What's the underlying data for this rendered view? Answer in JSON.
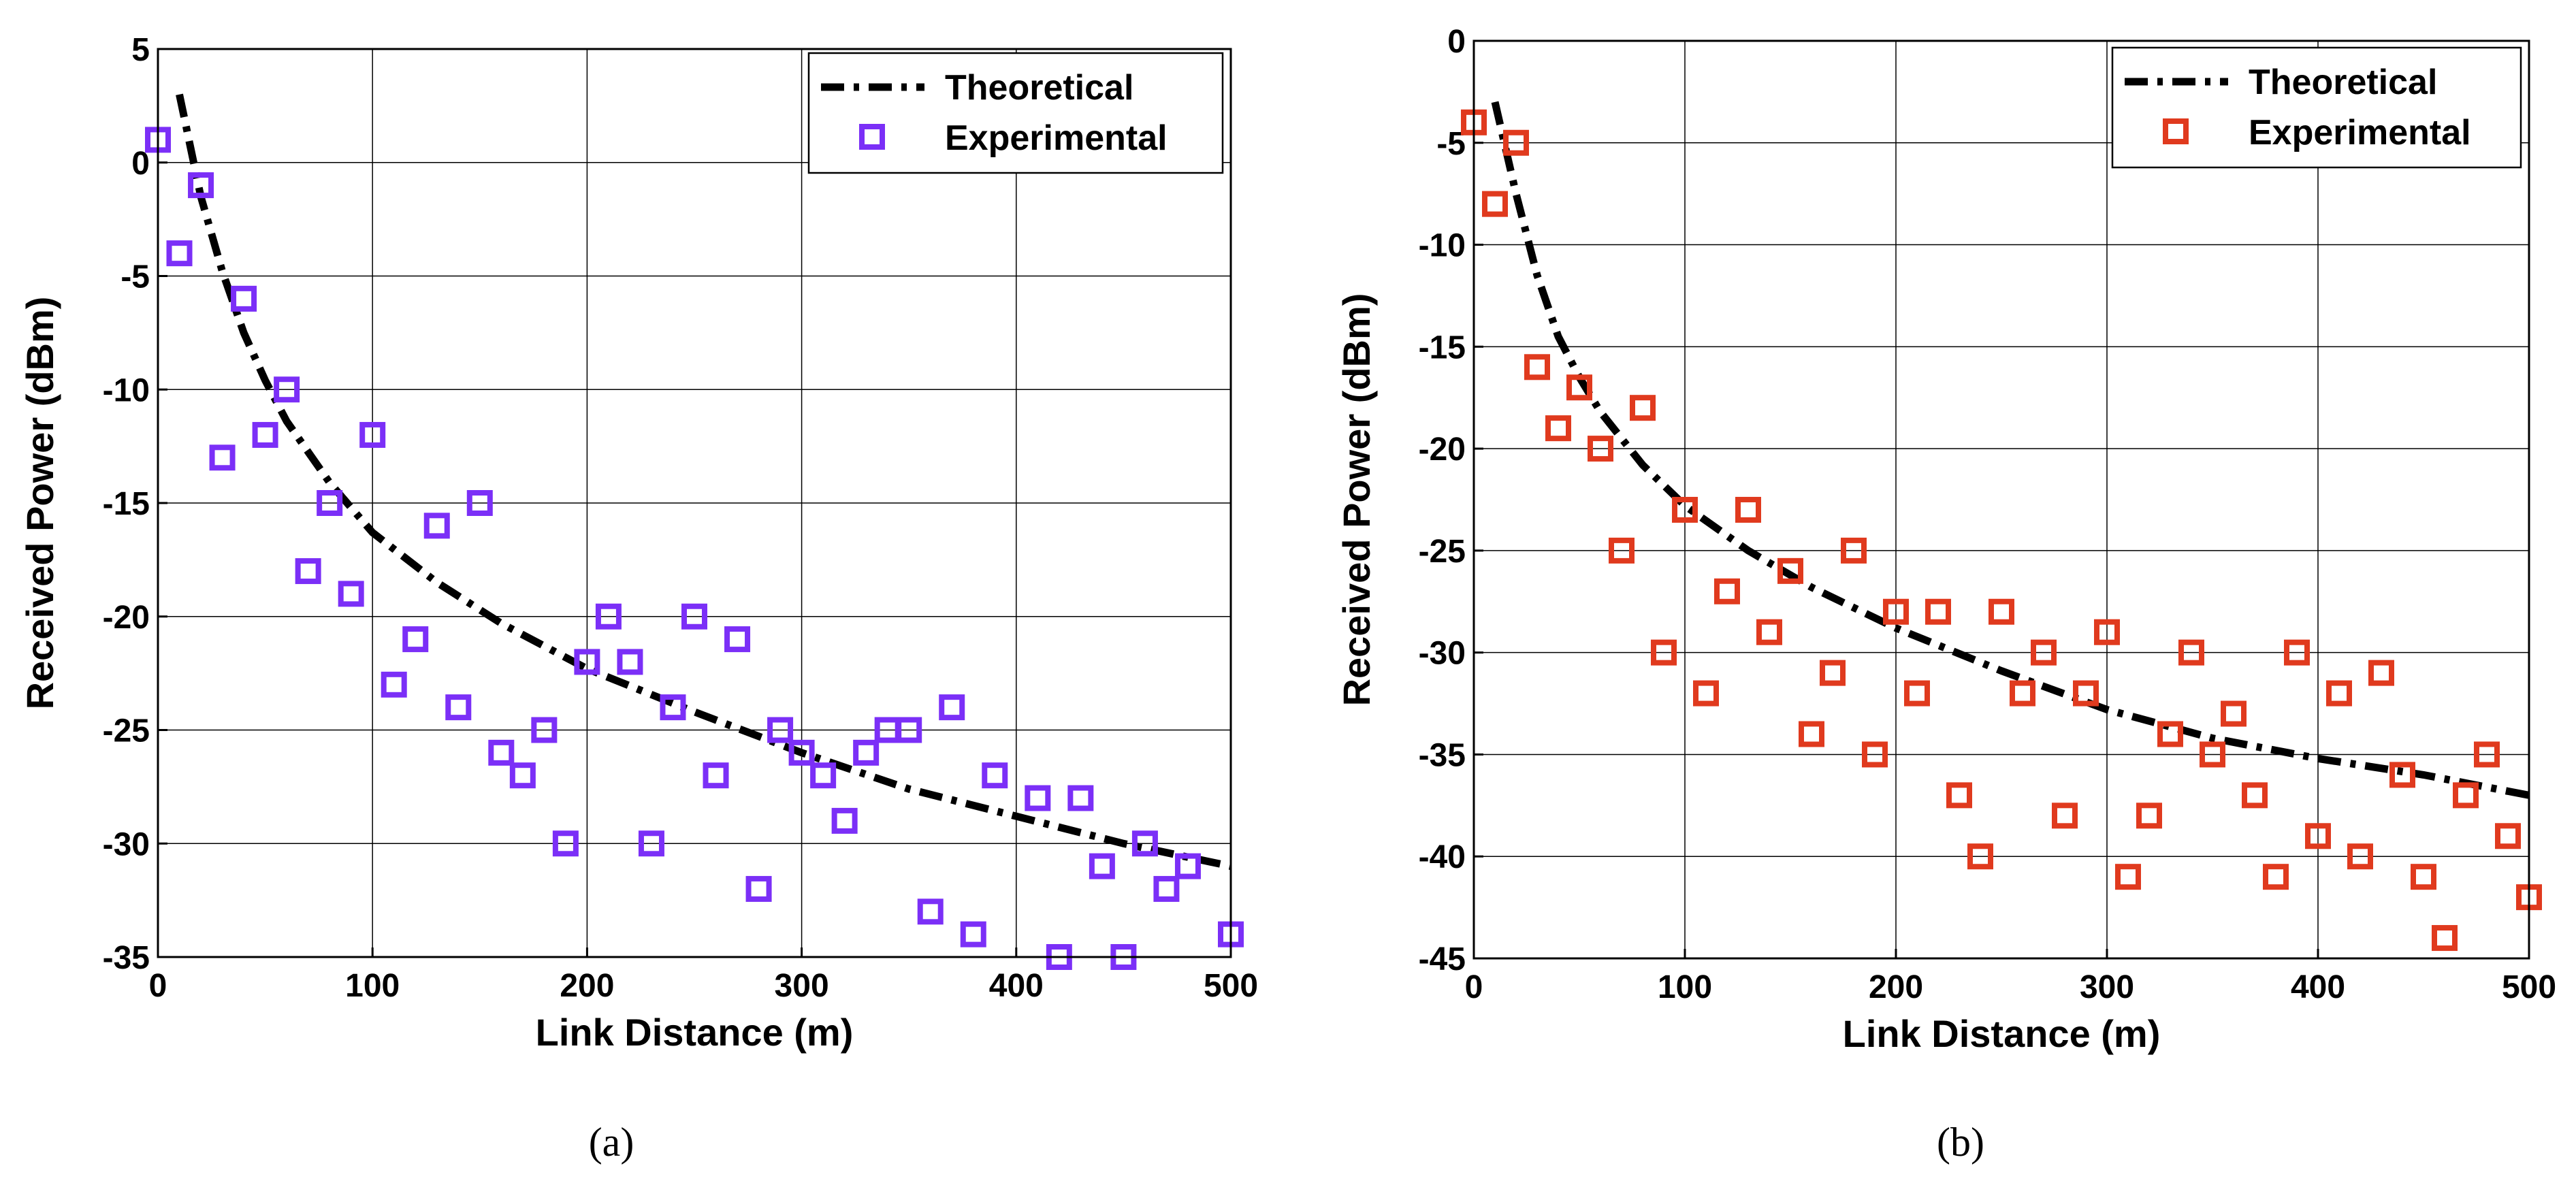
{
  "chart_data": [
    {
      "type": "scatter",
      "caption": "(a)",
      "xlabel": "Link Distance (m)",
      "ylabel": "Received Power (dBm)",
      "xlim": [
        0,
        500
      ],
      "ylim": [
        -35,
        5
      ],
      "xticks": [
        0,
        100,
        200,
        300,
        400,
        500
      ],
      "yticks": [
        5,
        0,
        -5,
        -10,
        -15,
        -20,
        -25,
        -30,
        -35
      ],
      "grid": true,
      "legend_position": "top-right",
      "marker_color": "#7b2ff7",
      "series": [
        {
          "name": "Theoretical",
          "kind": "line",
          "style": "dash-dot",
          "x": [
            10,
            20,
            30,
            40,
            50,
            60,
            80,
            100,
            130,
            160,
            200,
            250,
            300,
            350,
            400,
            450,
            500
          ],
          "y": [
            3,
            -1.5,
            -4.8,
            -7.5,
            -9.6,
            -11.4,
            -14.1,
            -16.3,
            -18.5,
            -20.3,
            -22.3,
            -24.2,
            -26.0,
            -27.6,
            -28.8,
            -30.0,
            -31.0
          ]
        },
        {
          "name": "Experimental",
          "kind": "marker",
          "x": [
            0,
            10,
            20,
            30,
            40,
            50,
            60,
            70,
            80,
            90,
            100,
            110,
            120,
            130,
            140,
            150,
            160,
            170,
            180,
            190,
            200,
            210,
            220,
            230,
            240,
            250,
            260,
            270,
            280,
            290,
            300,
            310,
            320,
            330,
            340,
            350,
            360,
            370,
            380,
            390,
            410,
            420,
            430,
            440,
            450,
            460,
            470,
            480,
            500
          ],
          "y": [
            1,
            -4,
            -1,
            -13,
            -6,
            -12,
            -10,
            -18,
            -15,
            -19,
            -12,
            -23,
            -21,
            -16,
            -24,
            -15,
            -26,
            -27,
            -25,
            -30,
            -22,
            -20,
            -22,
            -30,
            -24,
            -20,
            -27,
            -21,
            -32,
            -25,
            -26,
            -27,
            -29,
            -26,
            -25,
            -25,
            -33,
            -24,
            -34,
            -27,
            -28,
            -35,
            -28,
            -31,
            -35,
            -30,
            -32,
            -31,
            -34
          ]
        }
      ]
    },
    {
      "type": "scatter",
      "caption": "(b)",
      "xlabel": "Link Distance (m)",
      "ylabel": "Received Power (dBm)",
      "xlim": [
        0,
        500
      ],
      "ylim": [
        -45,
        0
      ],
      "xticks": [
        0,
        100,
        200,
        300,
        400,
        500
      ],
      "yticks": [
        0,
        -5,
        -10,
        -15,
        -20,
        -25,
        -30,
        -35,
        -40,
        -45
      ],
      "grid": true,
      "legend_position": "top-right",
      "marker_color": "#e03a1e",
      "series": [
        {
          "name": "Theoretical",
          "kind": "line",
          "style": "dash-dot",
          "x": [
            10,
            20,
            30,
            40,
            50,
            60,
            80,
            100,
            130,
            160,
            200,
            250,
            300,
            350,
            400,
            450,
            500
          ],
          "y": [
            -3,
            -7.5,
            -11.5,
            -14.5,
            -16.5,
            -18.2,
            -20.8,
            -22.8,
            -25.0,
            -26.8,
            -28.8,
            -30.9,
            -32.8,
            -34.2,
            -35.2,
            -36.0,
            -37.0
          ]
        },
        {
          "name": "Experimental",
          "kind": "marker",
          "x": [
            0,
            10,
            20,
            30,
            40,
            50,
            60,
            70,
            80,
            90,
            100,
            110,
            120,
            130,
            140,
            150,
            160,
            170,
            180,
            190,
            200,
            210,
            220,
            230,
            240,
            250,
            260,
            270,
            280,
            290,
            300,
            310,
            320,
            330,
            340,
            350,
            360,
            370,
            380,
            390,
            400,
            410,
            420,
            430,
            440,
            450,
            460,
            470,
            480,
            490,
            500
          ],
          "y": [
            -4,
            -8,
            -5,
            -16,
            -19,
            -17,
            -20,
            -25,
            -18,
            -30,
            -23,
            -32,
            -27,
            -23,
            -29,
            -26,
            -34,
            -31,
            -25,
            -35,
            -28,
            -32,
            -28,
            -37,
            -40,
            -28,
            -32,
            -30,
            -38,
            -32,
            -29,
            -41,
            -38,
            -34,
            -30,
            -35,
            -33,
            -37,
            -41,
            -30,
            -39,
            -32,
            -40,
            -31,
            -36,
            -41,
            -44,
            -37,
            -35,
            -39,
            -42
          ]
        }
      ]
    }
  ]
}
